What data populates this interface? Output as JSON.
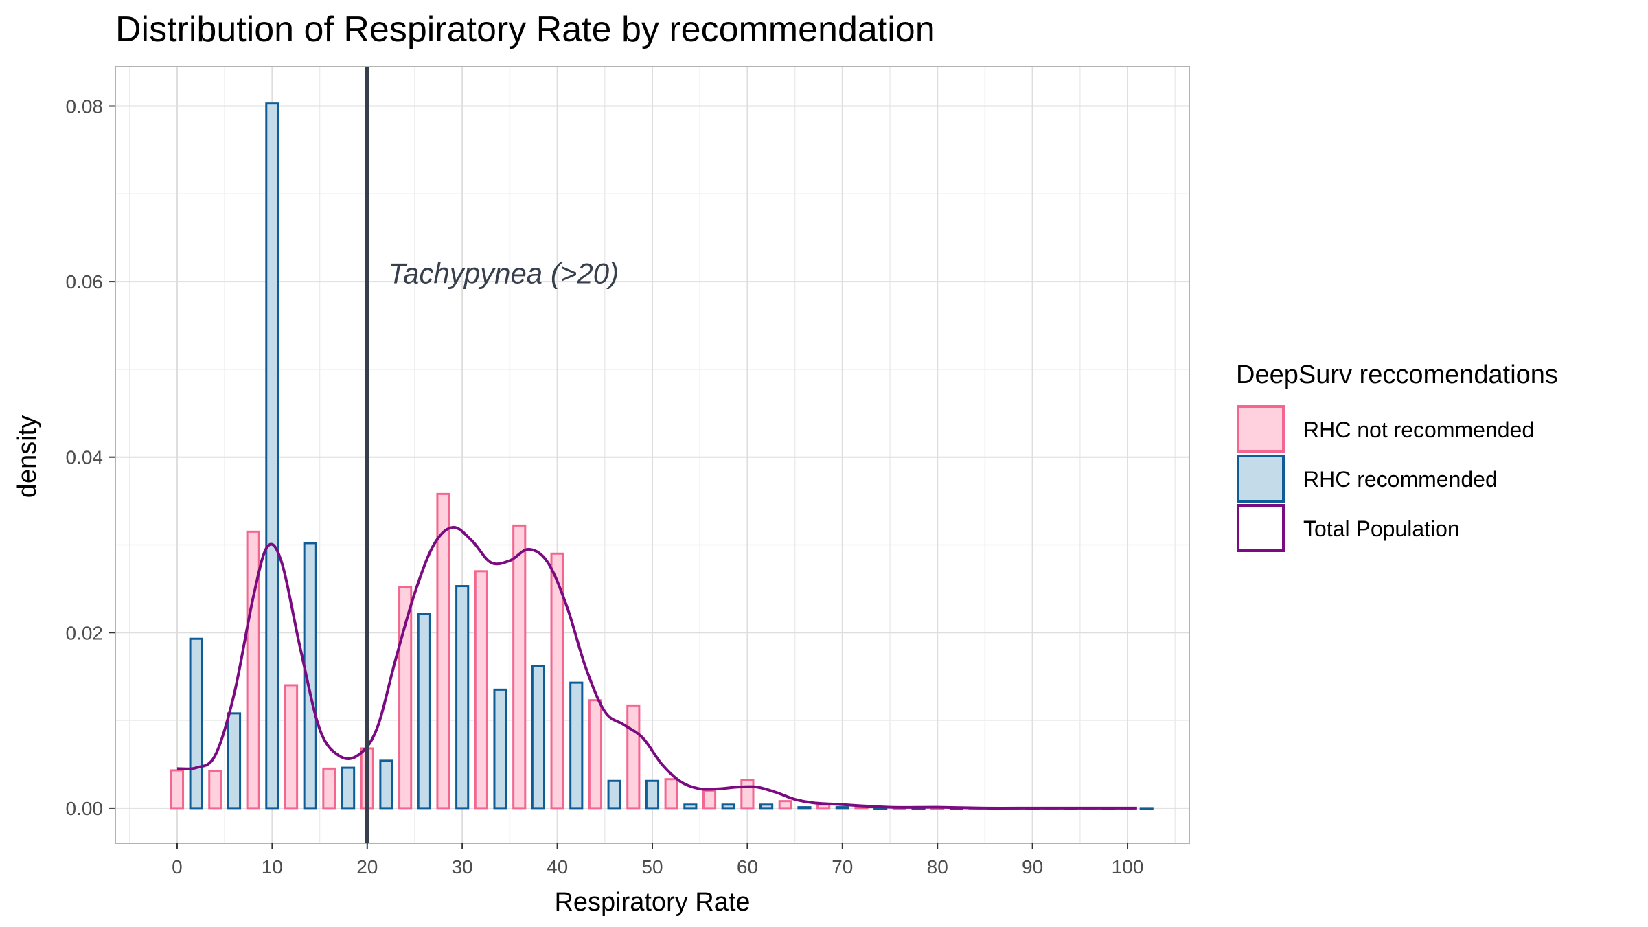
{
  "chart_data": {
    "type": "bar",
    "title": "Distribution of Respiratory Rate by recommendation",
    "xlabel": "Respiratory Rate",
    "ylabel": "density",
    "xlim": [
      -6.5,
      106.5
    ],
    "ylim": [
      -0.004,
      0.0845
    ],
    "x_ticks": [
      0,
      10,
      20,
      30,
      40,
      50,
      60,
      70,
      80,
      90,
      100
    ],
    "x_tick_labels": [
      "0",
      "10",
      "20",
      "30",
      "40",
      "50",
      "60",
      "70",
      "80",
      "90",
      "100"
    ],
    "y_ticks": [
      0,
      0.02,
      0.04,
      0.06,
      0.08
    ],
    "y_tick_labels": [
      "0.00",
      "0.02",
      "0.04",
      "0.06",
      "0.08"
    ],
    "grid": true,
    "bin_width": 4,
    "bin_centers": [
      1,
      5,
      9,
      13,
      17,
      21,
      25,
      29,
      33,
      37,
      41,
      45,
      49,
      53,
      57,
      61,
      65,
      69,
      73,
      77,
      81,
      85,
      89,
      93,
      97,
      101
    ],
    "series": [
      {
        "name": "RHC not recommended",
        "kind": "bar",
        "fill": "#ffd1de",
        "stroke": "#f2668f",
        "values": [
          0.0043,
          0.0042,
          0.0315,
          0.014,
          0.0045,
          0.0068,
          0.0252,
          0.0358,
          0.027,
          0.0322,
          0.029,
          0.0123,
          0.0117,
          0.0033,
          0.002,
          0.0032,
          0.0008,
          0.0004,
          0.0002,
          0,
          0,
          0,
          0,
          0,
          0,
          0
        ]
      },
      {
        "name": "RHC recommended",
        "kind": "bar",
        "fill": "#c4dbea",
        "stroke": "#0f5c96",
        "values": [
          0.0193,
          0.0108,
          0.0803,
          0.0302,
          0.0046,
          0.0054,
          0.0221,
          0.0253,
          0.0135,
          0.0162,
          0.0143,
          0.0031,
          0.0031,
          0.0004,
          0.0004,
          0.0004,
          0.0001,
          0.0001,
          0,
          0,
          0,
          0,
          0,
          0,
          0,
          0
        ]
      },
      {
        "name": "Total Population",
        "kind": "line",
        "stroke": "#7b0b80",
        "x": [
          0,
          2,
          4,
          6,
          8,
          9.5,
          11,
          13,
          15,
          17,
          19,
          21,
          23,
          25,
          27,
          29,
          31,
          33,
          35,
          37,
          39,
          41,
          43,
          45,
          47,
          49,
          51,
          53,
          55,
          57,
          59,
          61,
          63,
          65,
          67,
          70,
          75,
          80,
          85,
          90,
          95,
          101
        ],
        "y": [
          0.0045,
          0.0046,
          0.006,
          0.013,
          0.024,
          0.0298,
          0.028,
          0.018,
          0.009,
          0.006,
          0.006,
          0.009,
          0.017,
          0.0245,
          0.03,
          0.032,
          0.0305,
          0.028,
          0.0282,
          0.0295,
          0.028,
          0.023,
          0.016,
          0.011,
          0.0095,
          0.008,
          0.005,
          0.003,
          0.0022,
          0.0022,
          0.0024,
          0.0024,
          0.0018,
          0.001,
          0.0006,
          0.0004,
          0.0001,
          0.0001,
          0,
          0,
          0,
          0
        ]
      }
    ],
    "reference_line": {
      "x": 20,
      "label": "Tachypynea (>20)",
      "label_x": 22.2,
      "label_y": 0.0598,
      "color": "#373f4d"
    },
    "legend": {
      "title": "DeepSurv reccomendations",
      "position": "right",
      "items": [
        {
          "label": "RHC not recommended",
          "fill": "#ffd1de",
          "stroke": "#f2668f"
        },
        {
          "label": "RHC recommended",
          "fill": "#c4dbea",
          "stroke": "#0f5c96"
        },
        {
          "label": "Total Population",
          "fill": "#ffffff",
          "stroke": "#7b0b80"
        }
      ]
    }
  }
}
